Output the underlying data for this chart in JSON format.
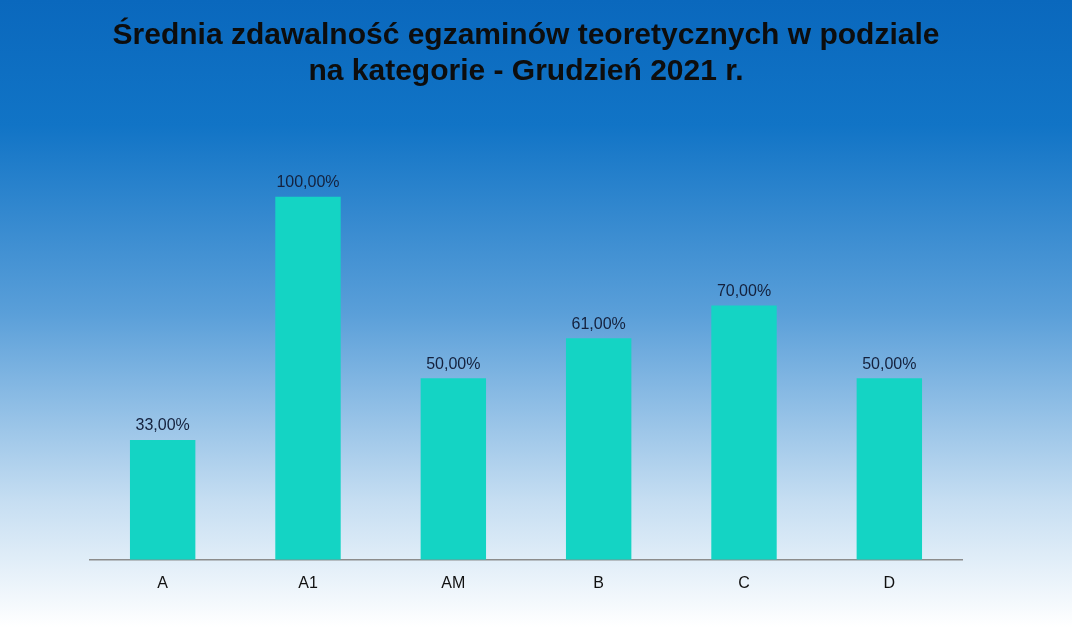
{
  "chart_data": {
    "type": "bar",
    "title": "Średnia zdawalność egzaminów teoretycznych w podziale na kategorie - Grudzień 2021 r.",
    "categories": [
      "A",
      "A1",
      "AM",
      "B",
      "C",
      "D"
    ],
    "values": [
      33,
      100,
      50,
      61,
      70,
      50
    ],
    "value_labels": [
      "33,00%",
      "100,00%",
      "50,00%",
      "61,00%",
      "70,00%",
      "50,00%"
    ],
    "color": "#14d4c4",
    "tick_labels": "x",
    "grid": false
  }
}
